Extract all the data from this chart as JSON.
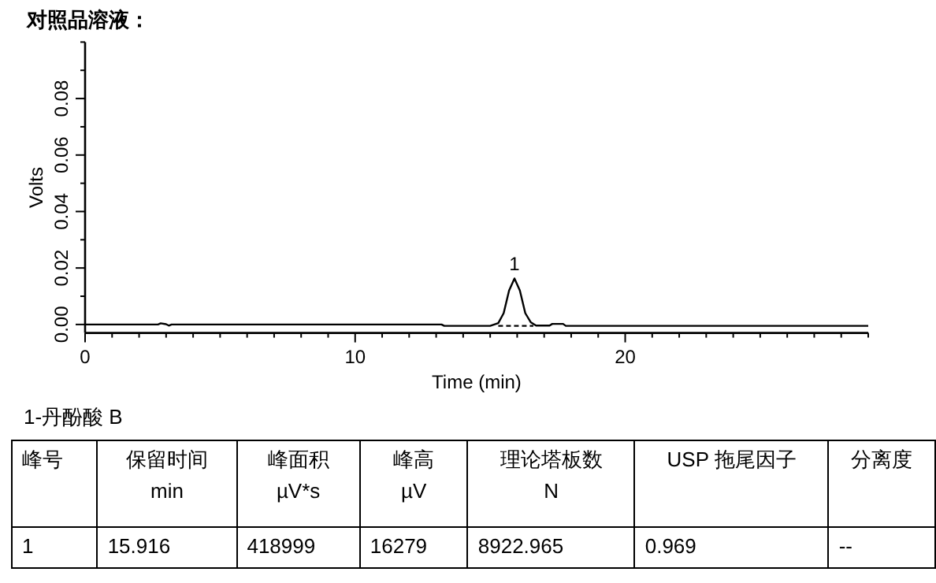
{
  "chart_data": {
    "type": "line",
    "title": "对照品溶液：",
    "xlabel": "Time (min)",
    "ylabel": "Volts",
    "xlim": [
      0,
      29
    ],
    "ylim": [
      -0.003,
      0.1
    ],
    "xticks": [
      0,
      {
        "value": 1,
        "label": null
      },
      {
        "value": 2,
        "label": null
      },
      {
        "value": 3,
        "label": null
      },
      {
        "value": 4,
        "label": null
      },
      {
        "value": 5,
        "label": null
      },
      {
        "value": 6,
        "label": null
      },
      {
        "value": 7,
        "label": null
      },
      {
        "value": 8,
        "label": null
      },
      {
        "value": 9,
        "label": null
      },
      10,
      {
        "value": 11,
        "label": null
      },
      {
        "value": 12,
        "label": null
      },
      {
        "value": 13,
        "label": null
      },
      {
        "value": 14,
        "label": null
      },
      {
        "value": 15,
        "label": null
      },
      {
        "value": 16,
        "label": null
      },
      {
        "value": 17,
        "label": null
      },
      {
        "value": 18,
        "label": null
      },
      {
        "value": 19,
        "label": null
      },
      20,
      {
        "value": 21,
        "label": null
      },
      {
        "value": 22,
        "label": null
      },
      {
        "value": 23,
        "label": null
      },
      {
        "value": 24,
        "label": null
      },
      {
        "value": 25,
        "label": null
      },
      {
        "value": 26,
        "label": null
      },
      {
        "value": 27,
        "label": null
      },
      {
        "value": 28,
        "label": null
      },
      {
        "value": 29,
        "label": null
      }
    ],
    "yticks": [
      {
        "value": 0,
        "label": "0.00"
      },
      {
        "value": 0.01,
        "label": null
      },
      {
        "value": 0.02,
        "label": "0.02"
      },
      {
        "value": 0.03,
        "label": null
      },
      {
        "value": 0.04,
        "label": "0.04"
      },
      {
        "value": 0.05,
        "label": null
      },
      {
        "value": 0.06,
        "label": "0.06"
      },
      {
        "value": 0.07,
        "label": null
      },
      {
        "value": 0.08,
        "label": "0.08"
      },
      {
        "value": 0.09,
        "label": null
      },
      {
        "value": 0.1,
        "label": null
      }
    ],
    "series": [
      {
        "color": "#000000",
        "x": [
          0,
          2.7,
          2.8,
          3.0,
          3.1,
          3.2,
          13.2,
          13.3,
          15.0,
          15.3,
          15.5,
          15.7,
          15.9,
          16.1,
          16.3,
          16.5,
          16.7,
          17.2,
          17.3,
          17.7,
          17.8,
          29
        ],
        "values": [
          0,
          0,
          0.0004,
          0.0001,
          -0.0004,
          0,
          0,
          -0.0005,
          -0.0005,
          0.0005,
          0.004,
          0.012,
          0.0163,
          0.012,
          0.004,
          0.0008,
          -0.0004,
          -0.0004,
          0.0002,
          0.0002,
          -0.0005,
          -0.0005
        ]
      },
      {
        "color": "#000000",
        "line_style": "dashed",
        "x": [
          15.3,
          16.6
        ],
        "values": [
          -0.0005,
          -0.0005
        ]
      }
    ],
    "annotations": [
      {
        "text": "1",
        "x": 15.9,
        "y": 0.0163
      },
      "1-丹酚酸 B",
      "峰号",
      "保留时间\nmin",
      "峰面积\nµV*s",
      "峰高\nµV",
      "理论塔板数\nN",
      "USP 拖尾因子",
      "分离度",
      "1",
      "15.916",
      "418999",
      "16279",
      "8922.965",
      "0.969",
      "--"
    ]
  }
}
